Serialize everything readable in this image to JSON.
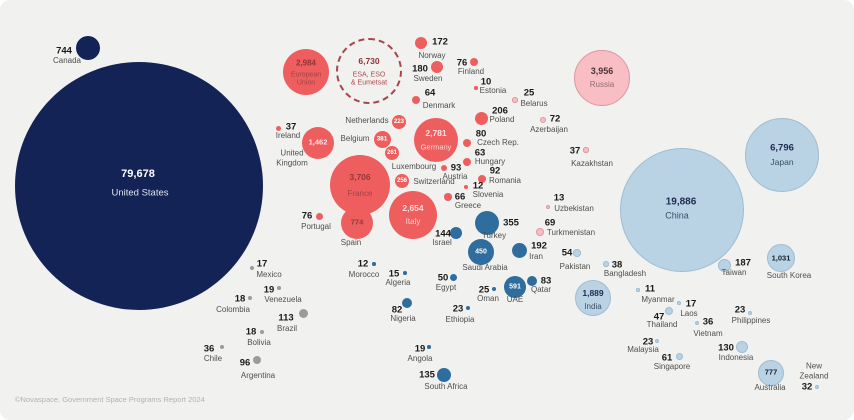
{
  "chart_data": {
    "type": "bubble",
    "title": "",
    "legend_position": "none",
    "region_colors": {
      "north-america": "#142356",
      "europe": "#ef5e5e",
      "esa-dashed-outline": "#a8474a",
      "russia-cis": "#f8bec4",
      "middle-east-africa": "#2e6d9d",
      "asia-pacific": "#b9d2e4",
      "latin-america": "#9b9b9b"
    },
    "countries": [
      {
        "id": "united-states",
        "name": "United States",
        "value": "79,678",
        "region": "north-america"
      },
      {
        "id": "canada",
        "name": "Canada",
        "value": "744",
        "region": "north-america"
      },
      {
        "id": "european-union",
        "name": "European\nUnion",
        "value": "2,984",
        "region": "europe"
      },
      {
        "id": "esa",
        "name": "ESA, ESO\n& Eumetsat",
        "value": "6,730",
        "region": "europe"
      },
      {
        "id": "norway",
        "name": "Norway",
        "value": "172",
        "region": "europe"
      },
      {
        "id": "sweden",
        "name": "Sweden",
        "value": "180",
        "region": "europe"
      },
      {
        "id": "finland",
        "name": "Finland",
        "value": "76",
        "region": "europe"
      },
      {
        "id": "denmark",
        "name": "Denmark",
        "value": "64",
        "region": "europe"
      },
      {
        "id": "estonia",
        "name": "Estonia",
        "value": "10",
        "region": "europe"
      },
      {
        "id": "netherlands",
        "name": "Netherlands",
        "value": "223",
        "region": "europe"
      },
      {
        "id": "belgium",
        "name": "Belgium",
        "value": "381",
        "region": "europe"
      },
      {
        "id": "united-kingdom",
        "name": "United\nKingdom",
        "value": "1,462",
        "region": "europe"
      },
      {
        "id": "ireland",
        "name": "Ireland",
        "value": "37",
        "region": "europe"
      },
      {
        "id": "luxembourg",
        "name": "Luxembourg",
        "value": "261",
        "region": "europe"
      },
      {
        "id": "switzerland",
        "name": "Switzerland",
        "value": "256",
        "region": "europe"
      },
      {
        "id": "france",
        "name": "France",
        "value": "3,706",
        "region": "europe"
      },
      {
        "id": "germany",
        "name": "Germany",
        "value": "2,781",
        "region": "europe"
      },
      {
        "id": "poland",
        "name": "Poland",
        "value": "206",
        "region": "europe"
      },
      {
        "id": "czech-rep",
        "name": "Czech Rep.",
        "value": "80",
        "region": "europe"
      },
      {
        "id": "hungary",
        "name": "Hungary",
        "value": "63",
        "region": "europe"
      },
      {
        "id": "austria",
        "name": "Austria",
        "value": "93",
        "region": "europe"
      },
      {
        "id": "romania",
        "name": "Romania",
        "value": "92",
        "region": "europe"
      },
      {
        "id": "slovenia",
        "name": "Slovenia",
        "value": "12",
        "region": "europe"
      },
      {
        "id": "greece",
        "name": "Greece",
        "value": "66",
        "region": "europe"
      },
      {
        "id": "italy",
        "name": "Italy",
        "value": "2,654",
        "region": "europe"
      },
      {
        "id": "portugal",
        "name": "Portugal",
        "value": "76",
        "region": "europe"
      },
      {
        "id": "spain",
        "name": "Spain",
        "value": "774",
        "region": "europe"
      },
      {
        "id": "russia",
        "name": "Russia",
        "value": "3,956",
        "region": "russia-cis"
      },
      {
        "id": "belarus",
        "name": "Belarus",
        "value": "25",
        "region": "russia-cis"
      },
      {
        "id": "azerbaijan",
        "name": "Azerbaijan",
        "value": "72",
        "region": "russia-cis"
      },
      {
        "id": "kazakhstan",
        "name": "Kazakhstan",
        "value": "37",
        "region": "russia-cis"
      },
      {
        "id": "uzbekistan",
        "name": "Uzbekistan",
        "value": "13",
        "region": "russia-cis"
      },
      {
        "id": "turkmenistan",
        "name": "Turkmenistan",
        "value": "69",
        "region": "russia-cis"
      },
      {
        "id": "turkey",
        "name": "Turkey",
        "value": "355",
        "region": "middle-east-africa"
      },
      {
        "id": "israel",
        "name": "Israel",
        "value": "144",
        "region": "middle-east-africa"
      },
      {
        "id": "saudi-arabia",
        "name": "Saudi Arabia",
        "value": "450",
        "region": "middle-east-africa"
      },
      {
        "id": "iran",
        "name": "Iran",
        "value": "192",
        "region": "middle-east-africa"
      },
      {
        "id": "egypt",
        "name": "Egypt",
        "value": "50",
        "region": "middle-east-africa"
      },
      {
        "id": "oman",
        "name": "Oman",
        "value": "25",
        "region": "middle-east-africa"
      },
      {
        "id": "uae",
        "name": "UAE",
        "value": "591",
        "region": "middle-east-africa"
      },
      {
        "id": "qatar",
        "name": "Qatar",
        "value": "83",
        "region": "middle-east-africa"
      },
      {
        "id": "morocco",
        "name": "Morocco",
        "value": "12",
        "region": "middle-east-africa"
      },
      {
        "id": "algeria",
        "name": "Algeria",
        "value": "15",
        "region": "middle-east-africa"
      },
      {
        "id": "nigeria",
        "name": "Nigeria",
        "value": "82",
        "region": "middle-east-africa"
      },
      {
        "id": "ethiopia",
        "name": "Ethiopia",
        "value": "23",
        "region": "middle-east-africa"
      },
      {
        "id": "angola",
        "name": "Angola",
        "value": "19",
        "region": "middle-east-africa"
      },
      {
        "id": "south-africa",
        "name": "South Africa",
        "value": "135",
        "region": "middle-east-africa"
      },
      {
        "id": "china",
        "name": "China",
        "value": "19,886",
        "region": "asia-pacific"
      },
      {
        "id": "japan",
        "name": "Japan",
        "value": "6,796",
        "region": "asia-pacific"
      },
      {
        "id": "india",
        "name": "India",
        "value": "1,889",
        "region": "asia-pacific"
      },
      {
        "id": "pakistan",
        "name": "Pakistan",
        "value": "54",
        "region": "asia-pacific"
      },
      {
        "id": "bangladesh",
        "name": "Bangladesh",
        "value": "38",
        "region": "asia-pacific"
      },
      {
        "id": "taiwan",
        "name": "Taiwan",
        "value": "187",
        "region": "asia-pacific"
      },
      {
        "id": "south-korea",
        "name": "South Korea",
        "value": "1,031",
        "region": "asia-pacific"
      },
      {
        "id": "myanmar",
        "name": "Myanmar",
        "value": "11",
        "region": "asia-pacific"
      },
      {
        "id": "laos",
        "name": "Laos",
        "value": "17",
        "region": "asia-pacific"
      },
      {
        "id": "thailand",
        "name": "Thailand",
        "value": "47",
        "region": "asia-pacific"
      },
      {
        "id": "vietnam",
        "name": "Vietnam",
        "value": "36",
        "region": "asia-pacific"
      },
      {
        "id": "philippines",
        "name": "Philippines",
        "value": "23",
        "region": "asia-pacific"
      },
      {
        "id": "malaysia",
        "name": "Malaysia",
        "value": "23",
        "region": "asia-pacific"
      },
      {
        "id": "singapore",
        "name": "Singapore",
        "value": "61",
        "region": "asia-pacific"
      },
      {
        "id": "indonesia",
        "name": "Indonesia",
        "value": "130",
        "region": "asia-pacific"
      },
      {
        "id": "australia",
        "name": "Australia",
        "value": "777",
        "region": "asia-pacific"
      },
      {
        "id": "new-zealand",
        "name": "New\nZealand",
        "value": "32",
        "region": "asia-pacific"
      },
      {
        "id": "mexico",
        "name": "Mexico",
        "value": "17",
        "region": "latin-america"
      },
      {
        "id": "venezuela",
        "name": "Venezuela",
        "value": "19",
        "region": "latin-america"
      },
      {
        "id": "colombia",
        "name": "Colombia",
        "value": "18",
        "region": "latin-america"
      },
      {
        "id": "brazil",
        "name": "Brazil",
        "value": "113",
        "region": "latin-america"
      },
      {
        "id": "bolivia",
        "name": "Bolivia",
        "value": "18",
        "region": "latin-america"
      },
      {
        "id": "chile",
        "name": "Chile",
        "value": "36",
        "region": "latin-america"
      },
      {
        "id": "argentina",
        "name": "Argentina",
        "value": "96",
        "region": "latin-america"
      }
    ]
  },
  "footer": {
    "credit": "©Novaspace, Government Space Programs Report 2024"
  }
}
